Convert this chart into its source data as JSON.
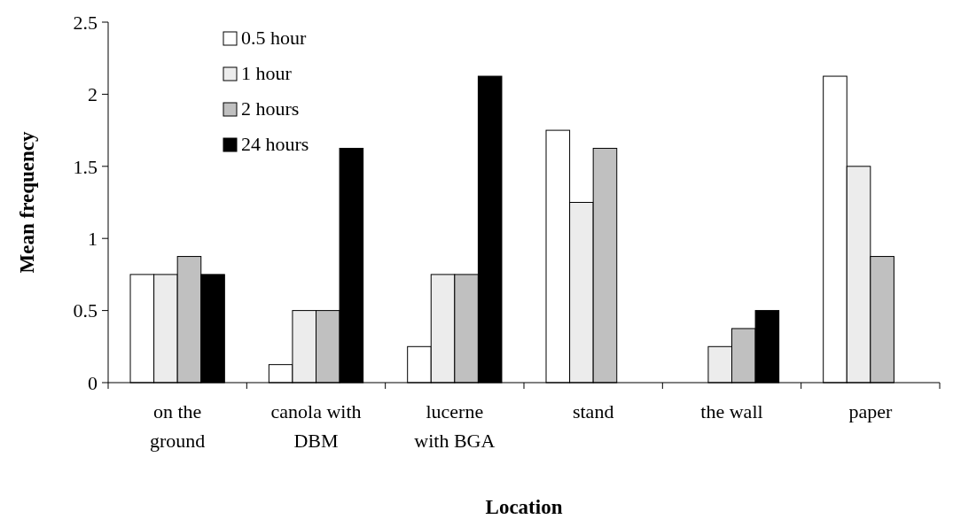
{
  "chart_data": {
    "type": "bar",
    "xlabel": "Location",
    "ylabel": "Mean frequency",
    "categories": [
      "on the ground",
      "canola with DBM",
      "lucerne with BGA",
      "stand",
      "the wall",
      "paper"
    ],
    "series": [
      {
        "name": "0.5 hour",
        "color": "#ffffff",
        "values": [
          0.75,
          0.125,
          0.25,
          1.75,
          0,
          2.125
        ]
      },
      {
        "name": "1 hour",
        "color": "#ececec",
        "values": [
          0.75,
          0.5,
          0.75,
          1.25,
          0.25,
          1.5
        ]
      },
      {
        "name": "2 hours",
        "color": "#c0c0c0",
        "values": [
          0.875,
          0.5,
          0.75,
          1.625,
          0.375,
          0.875
        ]
      },
      {
        "name": "24 hours",
        "color": "#000000",
        "values": [
          0.75,
          1.625,
          2.125,
          0,
          0.5,
          0
        ]
      }
    ],
    "ylim": [
      0,
      2.5
    ],
    "yticks": [
      0,
      0.5,
      1,
      1.5,
      2,
      2.5
    ],
    "legend": "top left",
    "grid": false
  }
}
